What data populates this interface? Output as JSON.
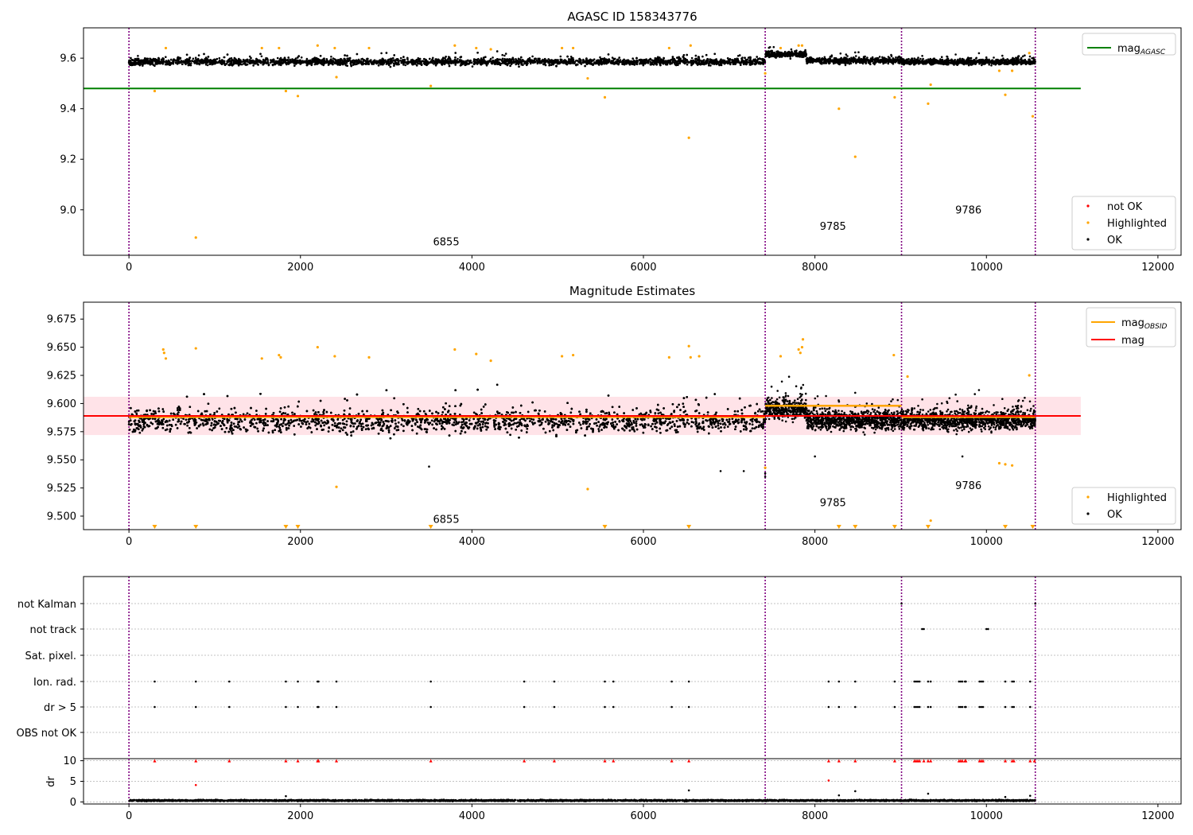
{
  "colors": {
    "ok": "#000000",
    "highlighted": "#ffa500",
    "not_ok": "#ff0000",
    "agasc_line": "#008000",
    "mag_line": "#ff0000",
    "obsid_line": "#ffa500",
    "band": "#ffc0cb",
    "obs_boundary": "#800080",
    "grid": "#b0b0b0"
  },
  "chart_data": [
    {
      "id": "agasc",
      "type": "scatter",
      "title": "AGASC ID 158343776",
      "xlim": [
        -530,
        12270
      ],
      "ylim": [
        8.82,
        9.72
      ],
      "xticks": [
        0,
        2000,
        4000,
        6000,
        8000,
        10000,
        12000
      ],
      "xtick_labels": [
        "0",
        "2000",
        "4000",
        "6000",
        "8000",
        "10000",
        "12000"
      ],
      "yticks": [
        9.0,
        9.2,
        9.4,
        9.6
      ],
      "ytick_labels": [
        "9.0",
        "9.2",
        "9.4",
        "9.6"
      ],
      "obs_boundaries": [
        0,
        7420,
        9010,
        10570
      ],
      "obs_labels": [
        {
          "text": "6855",
          "x": 3700,
          "y": 8.86
        },
        {
          "text": "9785",
          "x": 8210,
          "y": 8.92
        },
        {
          "text": "9786",
          "x": 9790,
          "y": 8.985
        }
      ],
      "hlines": [
        {
          "name": "mag_AGASC",
          "y": 9.48,
          "x": [
            -530,
            11100
          ]
        }
      ],
      "ok_bands": [
        {
          "x": [
            0,
            7420
          ],
          "center": 9.585,
          "spread": 0.022
        },
        {
          "x": [
            7420,
            7900
          ],
          "center": 9.615,
          "spread": 0.02
        },
        {
          "x": [
            7900,
            9010
          ],
          "center": 9.59,
          "spread": 0.02
        },
        {
          "x": [
            9010,
            10570
          ],
          "center": 9.585,
          "spread": 0.018
        }
      ],
      "highlighted": [
        [
          300,
          9.47
        ],
        [
          430,
          9.64
        ],
        [
          780,
          8.89
        ],
        [
          1550,
          9.64
        ],
        [
          1750,
          9.64
        ],
        [
          1830,
          9.47
        ],
        [
          1970,
          9.45
        ],
        [
          2200,
          9.65
        ],
        [
          2400,
          9.64
        ],
        [
          2420,
          9.525
        ],
        [
          2800,
          9.64
        ],
        [
          3520,
          9.49
        ],
        [
          3800,
          9.65
        ],
        [
          4050,
          9.64
        ],
        [
          4220,
          9.635
        ],
        [
          5050,
          9.64
        ],
        [
          5180,
          9.64
        ],
        [
          5350,
          9.52
        ],
        [
          5550,
          9.445
        ],
        [
          6300,
          9.64
        ],
        [
          6530,
          9.285
        ],
        [
          6550,
          9.65
        ],
        [
          7420,
          9.54
        ],
        [
          7600,
          9.64
        ],
        [
          7810,
          9.65
        ],
        [
          7850,
          9.65
        ],
        [
          8280,
          9.4
        ],
        [
          8470,
          9.21
        ],
        [
          8930,
          9.445
        ],
        [
          9320,
          9.42
        ],
        [
          9350,
          9.495
        ],
        [
          10150,
          9.55
        ],
        [
          10220,
          9.455
        ],
        [
          10300,
          9.55
        ],
        [
          10500,
          9.62
        ],
        [
          10540,
          9.37
        ]
      ],
      "not_ok": [],
      "legend_top": [
        {
          "label": "mag",
          "sub": "AGASC",
          "color": "#008000"
        }
      ],
      "legend_bottom": [
        {
          "label": "not OK",
          "color": "#ff0000"
        },
        {
          "label": "Highlighted",
          "color": "#ffa500"
        },
        {
          "label": "OK",
          "color": "#000000"
        }
      ]
    },
    {
      "id": "estimates",
      "type": "scatter",
      "title": "Magnitude Estimates",
      "xlim": [
        -530,
        12270
      ],
      "ylim": [
        9.488,
        9.69
      ],
      "xticks": [
        0,
        2000,
        4000,
        6000,
        8000,
        10000,
        12000
      ],
      "xtick_labels": [
        "0",
        "2000",
        "4000",
        "6000",
        "8000",
        "10000",
        "12000"
      ],
      "yticks": [
        9.5,
        9.525,
        9.55,
        9.575,
        9.6,
        9.625,
        9.65,
        9.675
      ],
      "ytick_labels": [
        "9.500",
        "9.525",
        "9.550",
        "9.575",
        "9.600",
        "9.625",
        "9.650",
        "9.675"
      ],
      "obs_boundaries": [
        0,
        7420,
        9010,
        10570
      ],
      "obs_labels": [
        {
          "text": "6855",
          "x": 3700,
          "y": 9.494
        },
        {
          "text": "9785",
          "x": 8210,
          "y": 9.509
        },
        {
          "text": "9786",
          "x": 9790,
          "y": 9.524
        }
      ],
      "band": {
        "x": [
          -530,
          11100
        ],
        "y": [
          9.572,
          9.606
        ]
      },
      "hlines": [
        {
          "name": "mag",
          "y": 9.589,
          "x": [
            -530,
            11100
          ]
        }
      ],
      "obsid_segments": [
        {
          "x": [
            0,
            7420
          ],
          "y": 9.588
        },
        {
          "x": [
            7420,
            9010
          ],
          "y": 9.598
        },
        {
          "x": [
            9010,
            10570
          ],
          "y": 9.588
        }
      ],
      "ok_bands": [
        {
          "x": [
            0,
            7420
          ],
          "center": 9.584,
          "spread": 0.017
        },
        {
          "x": [
            7420,
            7900
          ],
          "center": 9.595,
          "spread": 0.015
        },
        {
          "x": [
            7900,
            9010
          ],
          "center": 9.585,
          "spread": 0.015
        },
        {
          "x": [
            9010,
            10570
          ],
          "center": 9.585,
          "spread": 0.014
        }
      ],
      "ok_outliers": [
        [
          3500,
          9.544
        ],
        [
          6900,
          9.54
        ],
        [
          7170,
          9.54
        ],
        [
          7420,
          9.535
        ],
        [
          7420,
          9.538
        ],
        [
          8000,
          9.553
        ],
        [
          9720,
          9.553
        ]
      ],
      "highlighted": [
        [
          400,
          9.648
        ],
        [
          410,
          9.645
        ],
        [
          430,
          9.64
        ],
        [
          780,
          9.649
        ],
        [
          1550,
          9.64
        ],
        [
          1750,
          9.643
        ],
        [
          1770,
          9.641
        ],
        [
          2200,
          9.65
        ],
        [
          2400,
          9.642
        ],
        [
          2420,
          9.526
        ],
        [
          2800,
          9.641
        ],
        [
          3800,
          9.648
        ],
        [
          4050,
          9.644
        ],
        [
          4220,
          9.638
        ],
        [
          5050,
          9.642
        ],
        [
          5180,
          9.643
        ],
        [
          5350,
          9.524
        ],
        [
          6300,
          9.641
        ],
        [
          6530,
          9.651
        ],
        [
          6550,
          9.641
        ],
        [
          6650,
          9.642
        ],
        [
          7420,
          9.543
        ],
        [
          7600,
          9.642
        ],
        [
          7810,
          9.648
        ],
        [
          7830,
          9.645
        ],
        [
          7850,
          9.65
        ],
        [
          7860,
          9.657
        ],
        [
          8920,
          9.643
        ],
        [
          9080,
          9.624
        ],
        [
          9350,
          9.496
        ],
        [
          10150,
          9.547
        ],
        [
          10220,
          9.546
        ],
        [
          10300,
          9.545
        ],
        [
          10500,
          9.625
        ]
      ],
      "cutoff_markers": [
        300,
        780,
        1830,
        1970,
        3520,
        5550,
        6530,
        8280,
        8470,
        8930,
        9320,
        10220,
        10540
      ],
      "legend_top": [
        {
          "label": "mag",
          "sub": "OBSID",
          "color": "#ffa500"
        },
        {
          "label": "mag",
          "sub": "",
          "color": "#ff0000"
        }
      ],
      "legend_bottom": [
        {
          "label": "Highlighted",
          "color": "#ffa500"
        },
        {
          "label": "OK",
          "color": "#000000"
        }
      ]
    },
    {
      "id": "flags",
      "type": "scatter",
      "xlim": [
        -530,
        12270
      ],
      "flag_labels": [
        "not Kalman",
        "not track",
        "Sat. pixel.",
        "Ion. rad.",
        "dr > 5",
        "OBS not OK"
      ],
      "obs_boundaries": [
        0,
        7420,
        9010,
        10570
      ],
      "flag_points": {
        "not Kalman": [
          9010,
          10570
        ],
        "not track": [
          9250,
          9270,
          10000,
          10020
        ],
        "Sat. pixel.": [],
        "Ion. rad.": [
          300,
          780,
          1170,
          1830,
          1970,
          2200,
          2210,
          2420,
          3520,
          4610,
          4960,
          5550,
          5650,
          6330,
          6530,
          8160,
          8280,
          8470,
          8930,
          9160,
          9180,
          9200,
          9220,
          9320,
          9350,
          9680,
          9700,
          9720,
          9750,
          9760,
          9920,
          9940,
          9960,
          10220,
          10300,
          10320,
          10510
        ],
        "dr > 5": [
          300,
          780,
          1170,
          1830,
          1970,
          2200,
          2210,
          2420,
          3520,
          4610,
          4960,
          5550,
          5650,
          6330,
          6530,
          8160,
          8280,
          8470,
          8930,
          9160,
          9180,
          9200,
          9220,
          9320,
          9350,
          9680,
          9700,
          9720,
          9750,
          9760,
          9920,
          9940,
          9960,
          10220,
          10300,
          10320,
          10510
        ],
        "OBS not OK": []
      }
    },
    {
      "id": "dr",
      "type": "scatter",
      "xlim": [
        -530,
        12270
      ],
      "ylim": [
        -0.5,
        10.5
      ],
      "ylabel": "dr",
      "yticks": [
        0,
        5,
        10
      ],
      "ytick_labels": [
        "0",
        "5",
        "10"
      ],
      "xticks": [
        0,
        2000,
        4000,
        6000,
        8000,
        10000,
        12000
      ],
      "xtick_labels": [
        "0",
        "2000",
        "4000",
        "6000",
        "8000",
        "10000",
        "12000"
      ],
      "obs_boundaries": [
        0,
        7420,
        9010,
        10570
      ],
      "capped_points": [
        300,
        780,
        1170,
        1830,
        1970,
        2200,
        2210,
        2420,
        3520,
        4610,
        4960,
        5550,
        5650,
        6330,
        6530,
        8160,
        8280,
        8470,
        8930,
        9160,
        9180,
        9200,
        9220,
        9270,
        9320,
        9350,
        9680,
        9700,
        9720,
        9750,
        9760,
        9920,
        9940,
        9960,
        10220,
        10300,
        10320,
        10510,
        10560
      ],
      "mid_points": [
        [
          780,
          4.1,
          "not_ok"
        ],
        [
          8160,
          5.2,
          "not_ok"
        ],
        [
          1830,
          1.4,
          "ok"
        ],
        [
          6530,
          2.8,
          "ok"
        ],
        [
          8280,
          1.6,
          "ok"
        ],
        [
          8470,
          2.6,
          "ok"
        ],
        [
          9320,
          2.0,
          "ok"
        ],
        [
          10220,
          1.2,
          "ok"
        ],
        [
          10510,
          1.5,
          "ok"
        ]
      ],
      "ok_band": {
        "x": [
          0,
          10570
        ],
        "center": 0.35,
        "spread": 0.35
      }
    }
  ]
}
